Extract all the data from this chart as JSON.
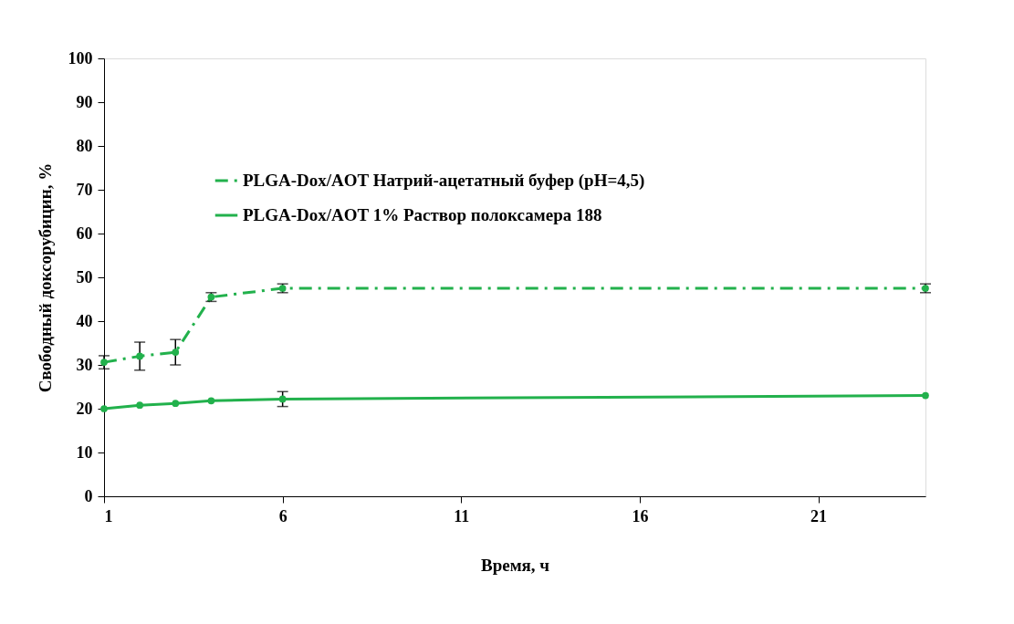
{
  "chart_data": {
    "type": "line",
    "xlabel": "Время, ч",
    "ylabel": "Свободный  доксорубицин,  %",
    "x": [
      1,
      2,
      3,
      4,
      6,
      24
    ],
    "xlim": [
      1,
      24
    ],
    "xticks": [
      1,
      6,
      11,
      16,
      21
    ],
    "ylim": [
      0,
      100
    ],
    "yticks": [
      0,
      10,
      20,
      30,
      40,
      50,
      60,
      70,
      80,
      90,
      100
    ],
    "grid": false,
    "legend": "top left",
    "marker": "circle",
    "series": [
      {
        "name": "PLGA-Dox/AOT  Натрий-ацетатный  буфер  (pH=4,5)",
        "color": "#22b14c",
        "line_style": "dashed",
        "values": [
          30.6,
          32,
          32.9,
          45.5,
          47.5,
          47.5
        ],
        "errors": [
          1.5,
          3.2,
          2.9,
          1,
          1,
          1
        ]
      },
      {
        "name": "PLGA-Dox/AOT   1% Раствор  полоксамера  188",
        "color": "#22b14c",
        "line_style": "solid",
        "values": [
          20,
          20.8,
          21.2,
          21.8,
          22.2,
          23
        ],
        "errors": [
          null,
          null,
          null,
          null,
          1.7,
          null
        ]
      }
    ]
  }
}
